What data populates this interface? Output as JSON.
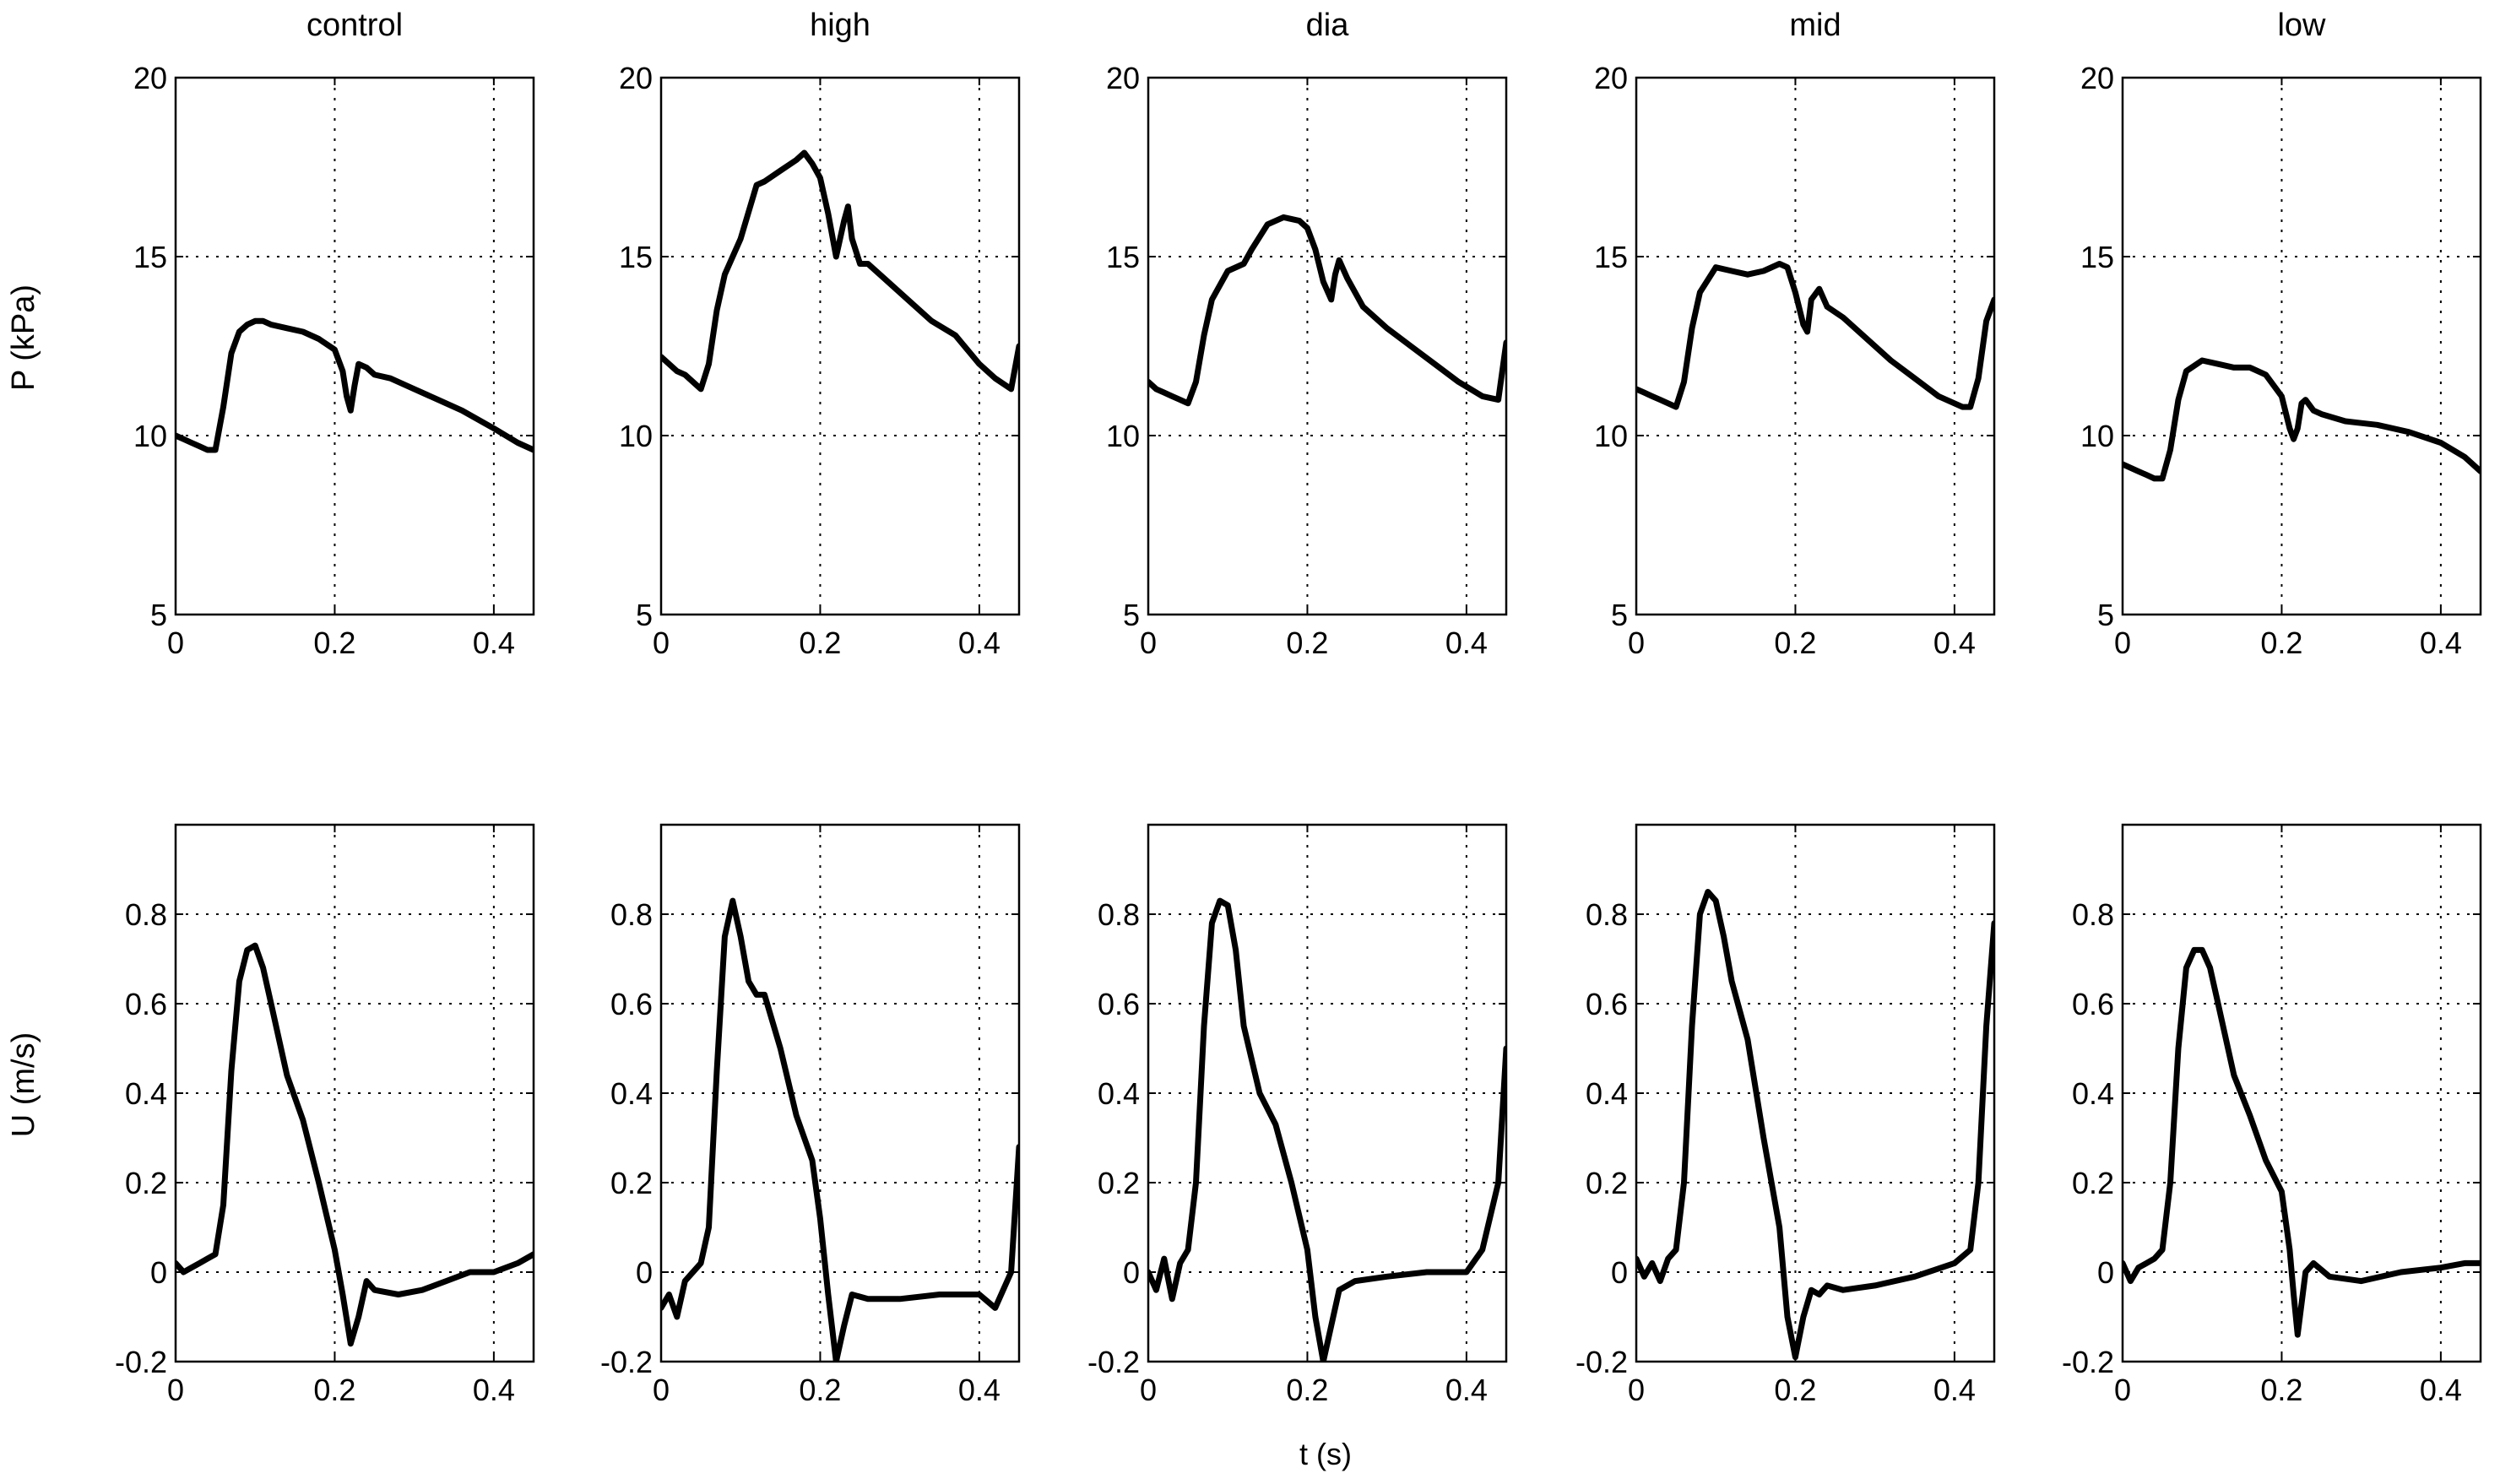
{
  "figure": {
    "panel_titles": [
      "control",
      "high",
      "dia",
      "mid",
      "low"
    ],
    "x_axis_label": "t  (s)",
    "line_color": "#000000",
    "grid": "dotted"
  },
  "chart_data": [
    {
      "type": "line",
      "panel": "control",
      "row": "P",
      "title": "control",
      "ylabel": "P  (kPa)",
      "xlim": [
        0,
        0.45
      ],
      "ylim": [
        5,
        20
      ],
      "xticks": [
        0,
        0.2,
        0.4
      ],
      "yticks": [
        5,
        10,
        15,
        20
      ],
      "x": [
        0,
        0.01,
        0.02,
        0.03,
        0.04,
        0.05,
        0.06,
        0.07,
        0.08,
        0.09,
        0.1,
        0.11,
        0.12,
        0.14,
        0.16,
        0.18,
        0.2,
        0.21,
        0.215,
        0.22,
        0.225,
        0.23,
        0.24,
        0.25,
        0.27,
        0.3,
        0.33,
        0.36,
        0.4,
        0.43,
        0.45
      ],
      "series": [
        {
          "values": [
            10.0,
            9.9,
            9.8,
            9.7,
            9.6,
            9.6,
            10.8,
            12.3,
            12.9,
            13.1,
            13.2,
            13.2,
            13.1,
            13.0,
            12.9,
            12.7,
            12.4,
            11.8,
            11.1,
            10.7,
            11.4,
            12.0,
            11.9,
            11.7,
            11.6,
            11.3,
            11.0,
            10.7,
            10.2,
            9.8,
            9.6
          ]
        }
      ]
    },
    {
      "type": "line",
      "panel": "high",
      "row": "P",
      "title": "high",
      "ylabel": "",
      "xlim": [
        0,
        0.45
      ],
      "ylim": [
        5,
        20
      ],
      "xticks": [
        0,
        0.2,
        0.4
      ],
      "yticks": [
        5,
        10,
        15,
        20
      ],
      "x": [
        0,
        0.01,
        0.02,
        0.03,
        0.04,
        0.05,
        0.06,
        0.07,
        0.08,
        0.1,
        0.12,
        0.13,
        0.15,
        0.17,
        0.18,
        0.19,
        0.2,
        0.21,
        0.22,
        0.23,
        0.235,
        0.24,
        0.25,
        0.26,
        0.28,
        0.31,
        0.34,
        0.37,
        0.4,
        0.42,
        0.44,
        0.45
      ],
      "series": [
        {
          "values": [
            12.2,
            12.0,
            11.8,
            11.7,
            11.5,
            11.3,
            12.0,
            13.5,
            14.5,
            15.5,
            17.0,
            17.1,
            17.4,
            17.7,
            17.9,
            17.6,
            17.2,
            16.2,
            15.0,
            16.0,
            16.4,
            15.5,
            14.8,
            14.8,
            14.4,
            13.8,
            13.2,
            12.8,
            12.0,
            11.6,
            11.3,
            12.5
          ]
        }
      ]
    },
    {
      "type": "line",
      "panel": "dia",
      "row": "P",
      "title": "dia",
      "ylabel": "",
      "xlim": [
        0,
        0.45
      ],
      "ylim": [
        5,
        20
      ],
      "xticks": [
        0,
        0.2,
        0.4
      ],
      "yticks": [
        5,
        10,
        15,
        20
      ],
      "x": [
        0,
        0.01,
        0.02,
        0.03,
        0.04,
        0.05,
        0.06,
        0.07,
        0.08,
        0.1,
        0.12,
        0.13,
        0.15,
        0.17,
        0.19,
        0.2,
        0.21,
        0.22,
        0.23,
        0.235,
        0.24,
        0.25,
        0.27,
        0.3,
        0.33,
        0.36,
        0.39,
        0.42,
        0.44,
        0.45
      ],
      "series": [
        {
          "values": [
            11.5,
            11.3,
            11.2,
            11.1,
            11.0,
            10.9,
            11.5,
            12.8,
            13.8,
            14.6,
            14.8,
            15.2,
            15.9,
            16.1,
            16.0,
            15.8,
            15.2,
            14.3,
            13.8,
            14.5,
            14.9,
            14.4,
            13.6,
            13.0,
            12.5,
            12.0,
            11.5,
            11.1,
            11.0,
            12.6
          ]
        }
      ]
    },
    {
      "type": "line",
      "panel": "mid",
      "row": "P",
      "title": "mid",
      "ylabel": "",
      "xlim": [
        0,
        0.45
      ],
      "ylim": [
        5,
        20
      ],
      "xticks": [
        0,
        0.2,
        0.4
      ],
      "yticks": [
        5,
        10,
        15,
        20
      ],
      "x": [
        0,
        0.01,
        0.02,
        0.03,
        0.04,
        0.05,
        0.06,
        0.07,
        0.08,
        0.1,
        0.12,
        0.14,
        0.16,
        0.18,
        0.19,
        0.2,
        0.21,
        0.215,
        0.22,
        0.23,
        0.24,
        0.26,
        0.29,
        0.32,
        0.35,
        0.38,
        0.41,
        0.42,
        0.43,
        0.44,
        0.45
      ],
      "series": [
        {
          "values": [
            11.3,
            11.2,
            11.1,
            11.0,
            10.9,
            10.8,
            11.5,
            13.0,
            14.0,
            14.7,
            14.6,
            14.5,
            14.6,
            14.8,
            14.7,
            14.0,
            13.1,
            12.9,
            13.8,
            14.1,
            13.6,
            13.3,
            12.7,
            12.1,
            11.6,
            11.1,
            10.8,
            10.8,
            11.6,
            13.2,
            13.8
          ]
        }
      ]
    },
    {
      "type": "line",
      "panel": "low",
      "row": "P",
      "title": "low",
      "ylabel": "",
      "xlim": [
        0,
        0.45
      ],
      "ylim": [
        5,
        20
      ],
      "xticks": [
        0,
        0.2,
        0.4
      ],
      "yticks": [
        5,
        10,
        15,
        20
      ],
      "x": [
        0,
        0.01,
        0.02,
        0.03,
        0.04,
        0.05,
        0.06,
        0.07,
        0.08,
        0.1,
        0.12,
        0.14,
        0.16,
        0.18,
        0.2,
        0.21,
        0.215,
        0.22,
        0.225,
        0.23,
        0.24,
        0.25,
        0.28,
        0.32,
        0.36,
        0.4,
        0.43,
        0.45
      ],
      "series": [
        {
          "values": [
            9.2,
            9.1,
            9.0,
            8.9,
            8.8,
            8.8,
            9.6,
            11.0,
            11.8,
            12.1,
            12.0,
            11.9,
            11.9,
            11.7,
            11.1,
            10.2,
            9.9,
            10.2,
            10.9,
            11.0,
            10.7,
            10.6,
            10.4,
            10.3,
            10.1,
            9.8,
            9.4,
            9.0
          ]
        }
      ]
    },
    {
      "type": "line",
      "panel": "control",
      "row": "U",
      "title": "",
      "ylabel": "U  (m/s)",
      "xlim": [
        0,
        0.45
      ],
      "ylim": [
        -0.2,
        1.0
      ],
      "xticks": [
        0,
        0.2,
        0.4
      ],
      "yticks": [
        -0.2,
        0,
        0.2,
        0.4,
        0.6,
        0.8
      ],
      "x": [
        0,
        0.01,
        0.02,
        0.03,
        0.04,
        0.05,
        0.06,
        0.07,
        0.08,
        0.09,
        0.1,
        0.11,
        0.12,
        0.14,
        0.16,
        0.18,
        0.2,
        0.21,
        0.22,
        0.23,
        0.24,
        0.25,
        0.28,
        0.31,
        0.34,
        0.37,
        0.4,
        0.43,
        0.45
      ],
      "series": [
        {
          "values": [
            0.02,
            0.0,
            0.01,
            0.02,
            0.03,
            0.04,
            0.15,
            0.45,
            0.65,
            0.72,
            0.73,
            0.68,
            0.6,
            0.44,
            0.34,
            0.2,
            0.05,
            -0.05,
            -0.16,
            -0.1,
            -0.02,
            -0.04,
            -0.05,
            -0.04,
            -0.02,
            0.0,
            0.0,
            0.02,
            0.04
          ]
        }
      ]
    },
    {
      "type": "line",
      "panel": "high",
      "row": "U",
      "title": "",
      "ylabel": "",
      "xlim": [
        0,
        0.45
      ],
      "ylim": [
        -0.2,
        1.0
      ],
      "xticks": [
        0,
        0.2,
        0.4
      ],
      "yticks": [
        -0.2,
        0,
        0.2,
        0.4,
        0.6,
        0.8
      ],
      "x": [
        0,
        0.01,
        0.02,
        0.03,
        0.04,
        0.05,
        0.06,
        0.07,
        0.08,
        0.09,
        0.1,
        0.11,
        0.12,
        0.13,
        0.15,
        0.17,
        0.19,
        0.2,
        0.21,
        0.22,
        0.23,
        0.24,
        0.26,
        0.3,
        0.35,
        0.4,
        0.42,
        0.44,
        0.45
      ],
      "series": [
        {
          "values": [
            -0.08,
            -0.05,
            -0.1,
            -0.02,
            0.0,
            0.02,
            0.1,
            0.45,
            0.75,
            0.83,
            0.75,
            0.65,
            0.62,
            0.62,
            0.5,
            0.35,
            0.25,
            0.12,
            -0.05,
            -0.2,
            -0.12,
            -0.05,
            -0.06,
            -0.06,
            -0.05,
            -0.05,
            -0.08,
            0.0,
            0.28
          ]
        }
      ]
    },
    {
      "type": "line",
      "panel": "dia",
      "row": "U",
      "title": "",
      "ylabel": "",
      "xlim": [
        0,
        0.45
      ],
      "ylim": [
        -0.2,
        1.0
      ],
      "xticks": [
        0,
        0.2,
        0.4
      ],
      "yticks": [
        -0.2,
        0,
        0.2,
        0.4,
        0.6,
        0.8
      ],
      "x": [
        0,
        0.01,
        0.02,
        0.03,
        0.04,
        0.05,
        0.06,
        0.07,
        0.08,
        0.09,
        0.1,
        0.11,
        0.12,
        0.14,
        0.16,
        0.18,
        0.2,
        0.21,
        0.22,
        0.23,
        0.24,
        0.26,
        0.3,
        0.35,
        0.4,
        0.42,
        0.44,
        0.45
      ],
      "series": [
        {
          "values": [
            0.0,
            -0.04,
            0.03,
            -0.06,
            0.02,
            0.05,
            0.2,
            0.55,
            0.78,
            0.83,
            0.82,
            0.72,
            0.55,
            0.4,
            0.33,
            0.2,
            0.05,
            -0.1,
            -0.2,
            -0.12,
            -0.04,
            -0.02,
            -0.01,
            0.0,
            0.0,
            0.05,
            0.2,
            0.5
          ]
        }
      ]
    },
    {
      "type": "line",
      "panel": "mid",
      "row": "U",
      "title": "",
      "ylabel": "",
      "xlim": [
        0,
        0.45
      ],
      "ylim": [
        -0.2,
        1.0
      ],
      "xticks": [
        0,
        0.2,
        0.4
      ],
      "yticks": [
        -0.2,
        0,
        0.2,
        0.4,
        0.6,
        0.8
      ],
      "x": [
        0,
        0.01,
        0.02,
        0.03,
        0.04,
        0.05,
        0.06,
        0.07,
        0.08,
        0.09,
        0.1,
        0.11,
        0.12,
        0.14,
        0.16,
        0.18,
        0.19,
        0.2,
        0.21,
        0.22,
        0.23,
        0.24,
        0.26,
        0.3,
        0.35,
        0.4,
        0.42,
        0.43,
        0.44,
        0.45
      ],
      "series": [
        {
          "values": [
            0.03,
            -0.01,
            0.02,
            -0.02,
            0.03,
            0.05,
            0.2,
            0.55,
            0.8,
            0.85,
            0.83,
            0.75,
            0.65,
            0.52,
            0.3,
            0.1,
            -0.1,
            -0.19,
            -0.1,
            -0.04,
            -0.05,
            -0.03,
            -0.04,
            -0.03,
            -0.01,
            0.02,
            0.05,
            0.2,
            0.55,
            0.78
          ]
        }
      ]
    },
    {
      "type": "line",
      "panel": "low",
      "row": "U",
      "title": "",
      "ylabel": "",
      "xlim": [
        0,
        0.45
      ],
      "ylim": [
        -0.2,
        1.0
      ],
      "xticks": [
        0,
        0.2,
        0.4
      ],
      "yticks": [
        -0.2,
        0,
        0.2,
        0.4,
        0.6,
        0.8
      ],
      "x": [
        0,
        0.01,
        0.02,
        0.03,
        0.04,
        0.05,
        0.06,
        0.07,
        0.08,
        0.09,
        0.1,
        0.11,
        0.12,
        0.14,
        0.16,
        0.18,
        0.2,
        0.21,
        0.215,
        0.22,
        0.23,
        0.24,
        0.26,
        0.3,
        0.35,
        0.4,
        0.43,
        0.45
      ],
      "series": [
        {
          "values": [
            0.02,
            -0.02,
            0.01,
            0.02,
            0.03,
            0.05,
            0.2,
            0.5,
            0.68,
            0.72,
            0.72,
            0.68,
            0.6,
            0.44,
            0.35,
            0.25,
            0.18,
            0.05,
            -0.05,
            -0.14,
            0.0,
            0.02,
            -0.01,
            -0.02,
            0.0,
            0.01,
            0.02,
            0.02
          ]
        }
      ]
    }
  ]
}
